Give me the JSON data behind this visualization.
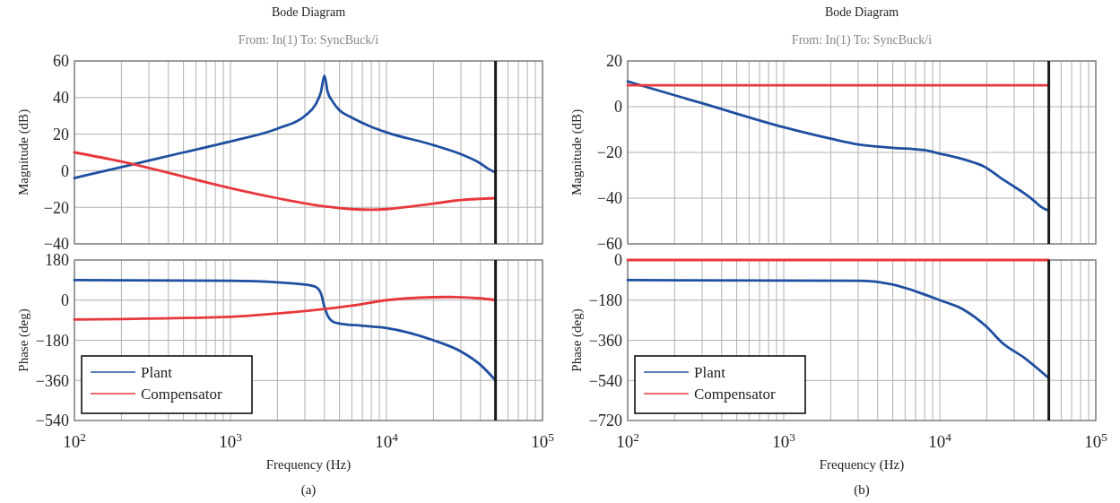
{
  "chart_data": [
    {
      "type": "line",
      "title": "Bode Diagram",
      "subtitle": "From: In(1)  To: SyncBuck/i",
      "ylabel": "Magnitude (dB)",
      "xlim": [
        100,
        100000
      ],
      "ylim": [
        -40,
        60
      ],
      "yticks": [
        {
          "value": -40,
          "label": "−40"
        },
        {
          "value": -20,
          "label": "−20"
        },
        0,
        20,
        40,
        60
      ],
      "log": "x",
      "grid": true,
      "tick_labels": "y",
      "xticks": [
        {
          "value": 100,
          "label": null
        },
        {
          "value": 200,
          "label": null
        },
        {
          "value": 300,
          "label": null
        },
        {
          "value": 400,
          "label": null
        },
        {
          "value": 500,
          "label": null
        },
        {
          "value": 600,
          "label": null
        },
        {
          "value": 700,
          "label": null
        },
        {
          "value": 800,
          "label": null
        },
        {
          "value": 900,
          "label": null
        },
        {
          "value": 1000,
          "label": null
        },
        {
          "value": 2000,
          "label": null
        },
        {
          "value": 3000,
          "label": null
        },
        {
          "value": 4000,
          "label": null
        },
        {
          "value": 5000,
          "label": null
        },
        {
          "value": 6000,
          "label": null
        },
        {
          "value": 7000,
          "label": null
        },
        {
          "value": 8000,
          "label": null
        },
        {
          "value": 9000,
          "label": null
        },
        {
          "value": 10000,
          "label": null
        },
        {
          "value": 20000,
          "label": null
        },
        {
          "value": 30000,
          "label": null
        },
        {
          "value": 40000,
          "label": null
        },
        {
          "value": 50000,
          "label": null
        },
        {
          "value": 60000,
          "label": null
        },
        {
          "value": 70000,
          "label": null
        },
        {
          "value": 80000,
          "label": null
        },
        {
          "value": 90000,
          "label": null
        },
        {
          "value": 100000,
          "label": null
        }
      ],
      "ref_lines": [
        {
          "axis": "x",
          "value": 50000,
          "color": "#1a1a1a"
        }
      ],
      "series": [
        {
          "color": "#1f4fa0",
          "x": [
            100,
            200,
            500,
            1000,
            2000,
            3000,
            3500,
            3800,
            4000,
            4200,
            4500,
            5000,
            6000,
            8000,
            10000,
            20000,
            30000,
            40000,
            45000,
            50000
          ],
          "values": [
            -4,
            2,
            10,
            16,
            23,
            30,
            36,
            43,
            52,
            43,
            38,
            33,
            29,
            24,
            21,
            14,
            9,
            4,
            1,
            -1
          ]
        },
        {
          "color": "#e8383d",
          "x": [
            100,
            200,
            300,
            1000,
            2000,
            4000,
            6000,
            8000,
            10000,
            20000,
            30000,
            50000
          ],
          "values": [
            10,
            5,
            1.5,
            -9.5,
            -15,
            -19.5,
            -21,
            -21.3,
            -21,
            -18,
            -16,
            -15
          ]
        }
      ]
    },
    {
      "type": "line",
      "xlabel": "Frequency  (Hz)",
      "ylabel": "Phase (deg)",
      "annotations": [
        "(a)"
      ],
      "xlim": [
        100,
        100000
      ],
      "ylim": [
        -540,
        180
      ],
      "yticks": [
        {
          "value": -540,
          "label": "−540"
        },
        {
          "value": -360,
          "label": "−360"
        },
        {
          "value": -180,
          "label": "−180"
        },
        0,
        180
      ],
      "log": "x",
      "grid": true,
      "legend": "bottom left",
      "xticks": [
        {
          "value": 100,
          "label": "10$^{2}$"
        },
        {
          "value": 200,
          "label": null
        },
        {
          "value": 300,
          "label": null
        },
        {
          "value": 400,
          "label": null
        },
        {
          "value": 500,
          "label": null
        },
        {
          "value": 600,
          "label": null
        },
        {
          "value": 700,
          "label": null
        },
        {
          "value": 800,
          "label": null
        },
        {
          "value": 900,
          "label": null
        },
        {
          "value": 1000,
          "label": "10$^{3}$"
        },
        {
          "value": 2000,
          "label": null
        },
        {
          "value": 3000,
          "label": null
        },
        {
          "value": 4000,
          "label": null
        },
        {
          "value": 5000,
          "label": null
        },
        {
          "value": 6000,
          "label": null
        },
        {
          "value": 7000,
          "label": null
        },
        {
          "value": 8000,
          "label": null
        },
        {
          "value": 9000,
          "label": null
        },
        {
          "value": 10000,
          "label": "10$^{4}$"
        },
        {
          "value": 20000,
          "label": null
        },
        {
          "value": 30000,
          "label": null
        },
        {
          "value": 40000,
          "label": null
        },
        {
          "value": 50000,
          "label": null
        },
        {
          "value": 60000,
          "label": null
        },
        {
          "value": 70000,
          "label": null
        },
        {
          "value": 80000,
          "label": null
        },
        {
          "value": 90000,
          "label": null
        },
        {
          "value": 100000,
          "label": "10$^{5}$"
        }
      ],
      "ref_lines": [
        {
          "axis": "x",
          "value": 50000,
          "color": "#1a1a1a"
        }
      ],
      "series": [
        {
          "name": "Plant",
          "color": "#1f4fa0",
          "x": [
            100,
            1000,
            2000,
            3000,
            3500,
            3800,
            4000,
            4200,
            4500,
            5000,
            7000,
            10000,
            20000,
            30000,
            40000,
            50000
          ],
          "values": [
            90,
            87,
            80,
            70,
            60,
            30,
            -30,
            -70,
            -95,
            -105,
            -115,
            -125,
            -180,
            -230,
            -290,
            -360
          ]
        },
        {
          "name": "Compensator",
          "color": "#e8383d",
          "x": [
            100,
            1000,
            2000,
            4000,
            6000,
            10000,
            20000,
            25000,
            40000,
            50000
          ],
          "values": [
            -87,
            -75,
            -60,
            -40,
            -25,
            0,
            13,
            14,
            8,
            0
          ]
        }
      ]
    },
    {
      "type": "line",
      "title": "Bode Diagram",
      "subtitle": "From: In(1)  To: SyncBuck/i",
      "ylabel": "Magnitude (dB)",
      "xlim": [
        100,
        100000
      ],
      "ylim": [
        -60,
        20
      ],
      "yticks": [
        {
          "value": -60,
          "label": "−60"
        },
        {
          "value": -40,
          "label": "−40"
        },
        {
          "value": -20,
          "label": "−20"
        },
        0,
        20
      ],
      "log": "x",
      "grid": true,
      "tick_labels": "y",
      "xticks": [
        {
          "value": 100,
          "label": null
        },
        {
          "value": 200,
          "label": null
        },
        {
          "value": 300,
          "label": null
        },
        {
          "value": 400,
          "label": null
        },
        {
          "value": 500,
          "label": null
        },
        {
          "value": 600,
          "label": null
        },
        {
          "value": 700,
          "label": null
        },
        {
          "value": 800,
          "label": null
        },
        {
          "value": 900,
          "label": null
        },
        {
          "value": 1000,
          "label": null
        },
        {
          "value": 2000,
          "label": null
        },
        {
          "value": 3000,
          "label": null
        },
        {
          "value": 4000,
          "label": null
        },
        {
          "value": 5000,
          "label": null
        },
        {
          "value": 6000,
          "label": null
        },
        {
          "value": 7000,
          "label": null
        },
        {
          "value": 8000,
          "label": null
        },
        {
          "value": 9000,
          "label": null
        },
        {
          "value": 10000,
          "label": null
        },
        {
          "value": 20000,
          "label": null
        },
        {
          "value": 30000,
          "label": null
        },
        {
          "value": 40000,
          "label": null
        },
        {
          "value": 50000,
          "label": null
        },
        {
          "value": 60000,
          "label": null
        },
        {
          "value": 70000,
          "label": null
        },
        {
          "value": 80000,
          "label": null
        },
        {
          "value": 90000,
          "label": null
        },
        {
          "value": 100000,
          "label": null
        }
      ],
      "ref_lines": [
        {
          "axis": "x",
          "value": 50000,
          "color": "#1a1a1a"
        }
      ],
      "series": [
        {
          "color": "#1f4fa0",
          "x": [
            100,
            200,
            300,
            1000,
            2000,
            3000,
            5000,
            8000,
            10000,
            15000,
            19000,
            25000,
            30000,
            35000,
            40000,
            45000,
            50000
          ],
          "values": [
            11,
            5,
            1.5,
            -9,
            -14,
            -16.5,
            -18,
            -19,
            -20.5,
            -23.5,
            -26,
            -31.5,
            -35,
            -38,
            -41,
            -44,
            -45.5
          ]
        },
        {
          "color": "#e8383d",
          "x": [
            100,
            50000
          ],
          "values": [
            9.4,
            9.4
          ]
        }
      ]
    },
    {
      "type": "line",
      "xlabel": "Frequency  (Hz)",
      "ylabel": "Phase (deg)",
      "annotations": [
        "(b)"
      ],
      "xlim": [
        100,
        100000
      ],
      "ylim": [
        -720,
        0
      ],
      "yticks": [
        {
          "value": -720,
          "label": "−720"
        },
        {
          "value": -540,
          "label": "−540"
        },
        {
          "value": -360,
          "label": "−360"
        },
        {
          "value": -180,
          "label": "−180"
        },
        0
      ],
      "log": "x",
      "grid": true,
      "legend": "bottom left",
      "xticks": [
        {
          "value": 100,
          "label": "10$^{2}$"
        },
        {
          "value": 200,
          "label": null
        },
        {
          "value": 300,
          "label": null
        },
        {
          "value": 400,
          "label": null
        },
        {
          "value": 500,
          "label": null
        },
        {
          "value": 600,
          "label": null
        },
        {
          "value": 700,
          "label": null
        },
        {
          "value": 800,
          "label": null
        },
        {
          "value": 900,
          "label": null
        },
        {
          "value": 1000,
          "label": "10$^{3}$"
        },
        {
          "value": 2000,
          "label": null
        },
        {
          "value": 3000,
          "label": null
        },
        {
          "value": 4000,
          "label": null
        },
        {
          "value": 5000,
          "label": null
        },
        {
          "value": 6000,
          "label": null
        },
        {
          "value": 7000,
          "label": null
        },
        {
          "value": 8000,
          "label": null
        },
        {
          "value": 9000,
          "label": null
        },
        {
          "value": 10000,
          "label": "10$^{4}$"
        },
        {
          "value": 20000,
          "label": null
        },
        {
          "value": 30000,
          "label": null
        },
        {
          "value": 40000,
          "label": null
        },
        {
          "value": 50000,
          "label": null
        },
        {
          "value": 60000,
          "label": null
        },
        {
          "value": 70000,
          "label": null
        },
        {
          "value": 80000,
          "label": null
        },
        {
          "value": 90000,
          "label": null
        },
        {
          "value": 100000,
          "label": "10$^{5}$"
        }
      ],
      "ref_lines": [
        {
          "axis": "x",
          "value": 50000,
          "color": "#1a1a1a"
        }
      ],
      "series": [
        {
          "name": "Plant",
          "color": "#1f4fa0",
          "x": [
            100,
            3000,
            5000,
            7000,
            10000,
            14000,
            20000,
            25000,
            35000,
            50000
          ],
          "values": [
            -90,
            -93,
            -110,
            -140,
            -180,
            -220,
            -300,
            -370,
            -440,
            -530
          ]
        },
        {
          "name": "Compensator",
          "color": "#e8383d",
          "x": [
            100,
            50000
          ],
          "values": [
            0,
            0
          ]
        }
      ]
    }
  ]
}
